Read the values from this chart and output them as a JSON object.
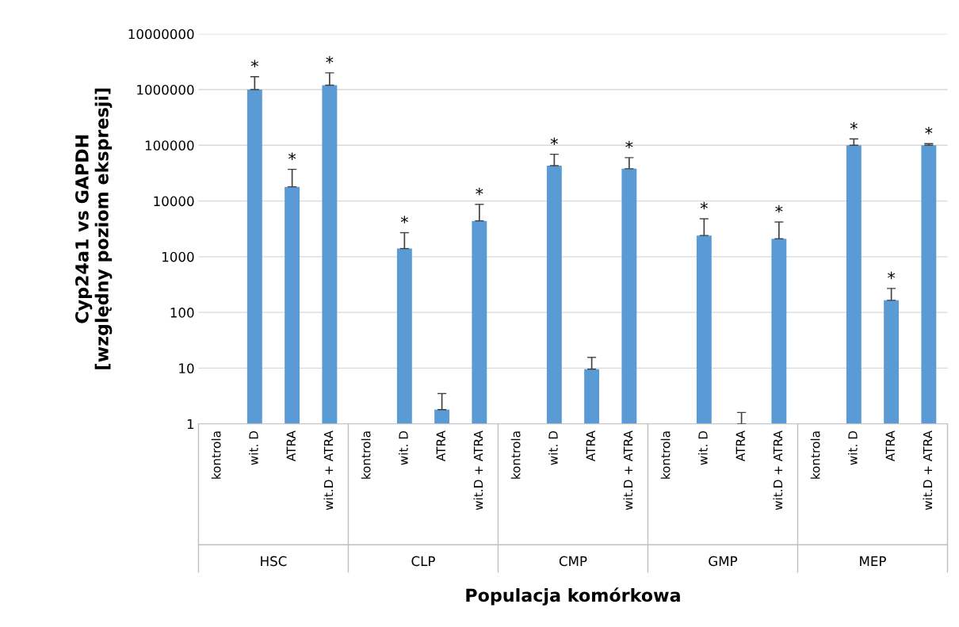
{
  "chart_data": {
    "type": "bar",
    "xlabel": "Populacja komórkowa",
    "ylabel": "Cyp24a1 vs GAPDH\n[względny poziom ekspresji]",
    "categories": [
      "kontrola",
      "wit. D",
      "ATRA",
      "wit.D + ATRA",
      "kontrola",
      "wit. D",
      "ATRA",
      "wit.D + ATRA",
      "kontrola",
      "wit. D",
      "ATRA",
      "wit.D + ATRA",
      "kontrola",
      "wit. D",
      "ATRA",
      "wit.D + ATRA",
      "kontrola",
      "wit. D",
      "ATRA",
      "wit.D + ATRA"
    ],
    "values": [
      1,
      1000000,
      18000,
      1200000,
      1,
      1400,
      1.8,
      4400,
      1,
      43000,
      9.6,
      38000,
      1,
      2400,
      1,
      2100,
      1,
      100000,
      165,
      100000
    ],
    "errors": [
      null,
      [
        1000000,
        1700000
      ],
      [
        18000,
        37000
      ],
      [
        1200000,
        2000000
      ],
      null,
      [
        1400,
        2700
      ],
      [
        1.8,
        3.5
      ],
      [
        4400,
        8700
      ],
      null,
      [
        43000,
        69000
      ],
      [
        9.6,
        15.6
      ],
      [
        38000,
        60000
      ],
      null,
      [
        2400,
        4800
      ],
      [
        1,
        1.6
      ],
      [
        2100,
        4200
      ],
      null,
      [
        100000,
        130000
      ],
      [
        165,
        270
      ],
      [
        100000,
        107000
      ]
    ],
    "value_labels": [
      null,
      "*",
      "*",
      "*",
      null,
      "*",
      null,
      "*",
      null,
      "*",
      null,
      "*",
      null,
      "*",
      null,
      "*",
      null,
      "*",
      "*",
      "*"
    ],
    "annotations": [
      "HSC",
      "CLP",
      "CMP",
      "GMP",
      "MEP"
    ],
    "color": "#5b9bd5",
    "log": "y",
    "ylim": [
      1,
      10000000
    ],
    "yticks": [
      1,
      10,
      100,
      1000,
      10000,
      100000,
      1000000,
      10000000
    ],
    "grid": "y",
    "legend": false
  }
}
